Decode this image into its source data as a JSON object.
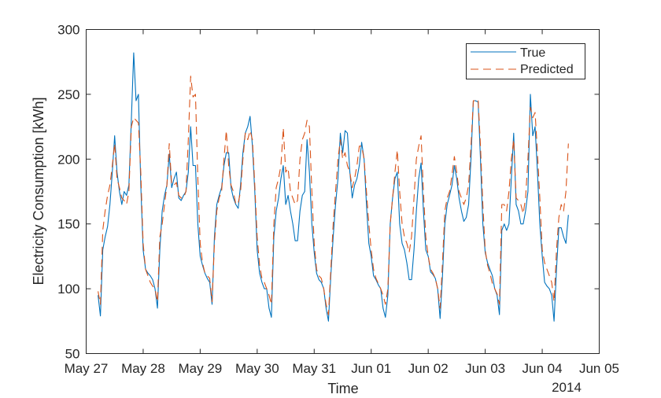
{
  "chart_data": {
    "type": "line",
    "title": "",
    "xlabel": "Time",
    "ylabel": "Electricity Consumption [kWh]",
    "ylim": [
      50,
      300
    ],
    "yticks": [
      50,
      100,
      150,
      200,
      250,
      300
    ],
    "xlim": [
      "2014-05-27 00:00",
      "2014-06-05 00:00"
    ],
    "xtick_labels": [
      "May 27",
      "May 28",
      "May 29",
      "May 30",
      "May 31",
      "Jun 01",
      "Jun 02",
      "Jun 03",
      "Jun 04",
      "Jun 05"
    ],
    "x_secondary_label": "2014",
    "grid": false,
    "legend_position": "top-right",
    "x_start": "2014-05-27 05:00",
    "x_step": "1 hour",
    "series": [
      {
        "name": "True",
        "color": "#0072BD",
        "style": "solid",
        "values": [
          95,
          79,
          130,
          140,
          148,
          165,
          190,
          218,
          190,
          175,
          165,
          175,
          172,
          180,
          230,
          282,
          245,
          250,
          180,
          130,
          115,
          112,
          110,
          107,
          100,
          85,
          130,
          160,
          172,
          180,
          204,
          178,
          185,
          190,
          170,
          168,
          172,
          175,
          190,
          225,
          195,
          195,
          150,
          125,
          118,
          112,
          108,
          105,
          88,
          140,
          165,
          172,
          178,
          195,
          205,
          205,
          178,
          170,
          165,
          162,
          180,
          205,
          220,
          225,
          233,
          210,
          175,
          130,
          112,
          105,
          100,
          100,
          85,
          78,
          140,
          160,
          170,
          185,
          195,
          165,
          172,
          160,
          150,
          137,
          137,
          160,
          172,
          175,
          215,
          190,
          150,
          128,
          112,
          107,
          105,
          100,
          85,
          75,
          110,
          140,
          165,
          185,
          220,
          205,
          222,
          220,
          190,
          170,
          180,
          185,
          195,
          213,
          200,
          165,
          135,
          125,
          110,
          107,
          103,
          100,
          85,
          78,
          95,
          150,
          170,
          185,
          190,
          150,
          135,
          130,
          120,
          107,
          107,
          130,
          160,
          185,
          197,
          160,
          130,
          125,
          113,
          111,
          108,
          100,
          77,
          110,
          150,
          165,
          172,
          180,
          195,
          185,
          170,
          160,
          152,
          155,
          165,
          200,
          245,
          245,
          244,
          200,
          150,
          128,
          120,
          115,
          110,
          100,
          95,
          80,
          145,
          150,
          145,
          150,
          185,
          220,
          165,
          160,
          150,
          150,
          160,
          175,
          250,
          218,
          225,
          190,
          150,
          125,
          105,
          102,
          100,
          95,
          75,
          115,
          147,
          147,
          140,
          135,
          157
        ]
      },
      {
        "name": "Predicted",
        "color": "#D95319",
        "style": "dashed",
        "values": [
          98,
          88,
          145,
          160,
          172,
          180,
          195,
          212,
          185,
          178,
          170,
          168,
          165,
          175,
          225,
          232,
          230,
          228,
          190,
          135,
          115,
          110,
          105,
          102,
          100,
          90,
          140,
          150,
          165,
          180,
          212,
          180,
          180,
          182,
          172,
          170,
          170,
          175,
          215,
          264,
          248,
          250,
          185,
          135,
          120,
          112,
          110,
          108,
          90,
          135,
          160,
          170,
          175,
          200,
          222,
          195,
          180,
          175,
          165,
          166,
          175,
          200,
          220,
          215,
          222,
          215,
          180,
          140,
          118,
          108,
          105,
          100,
          95,
          88,
          150,
          178,
          185,
          195,
          224,
          190,
          193,
          175,
          170,
          165,
          168,
          200,
          215,
          220,
          230,
          225,
          175,
          135,
          115,
          110,
          108,
          100,
          88,
          80,
          115,
          150,
          175,
          200,
          215,
          200,
          205,
          195,
          190,
          178,
          185,
          195,
          210,
          210,
          200,
          175,
          150,
          130,
          115,
          108,
          104,
          100,
          95,
          88,
          100,
          150,
          170,
          190,
          207,
          175,
          150,
          140,
          135,
          128,
          140,
          170,
          200,
          210,
          218,
          175,
          140,
          125,
          115,
          112,
          108,
          100,
          85,
          120,
          160,
          170,
          175,
          188,
          202,
          190,
          175,
          170,
          165,
          170,
          180,
          210,
          245,
          245,
          246,
          210,
          165,
          130,
          118,
          112,
          104,
          100,
          96,
          88,
          165,
          165,
          160,
          175,
          200,
          215,
          170,
          168,
          165,
          158,
          170,
          200,
          240,
          232,
          236,
          205,
          170,
          130,
          120,
          115,
          110,
          105,
          90,
          130,
          155,
          165,
          160,
          175,
          212
        ]
      }
    ]
  }
}
